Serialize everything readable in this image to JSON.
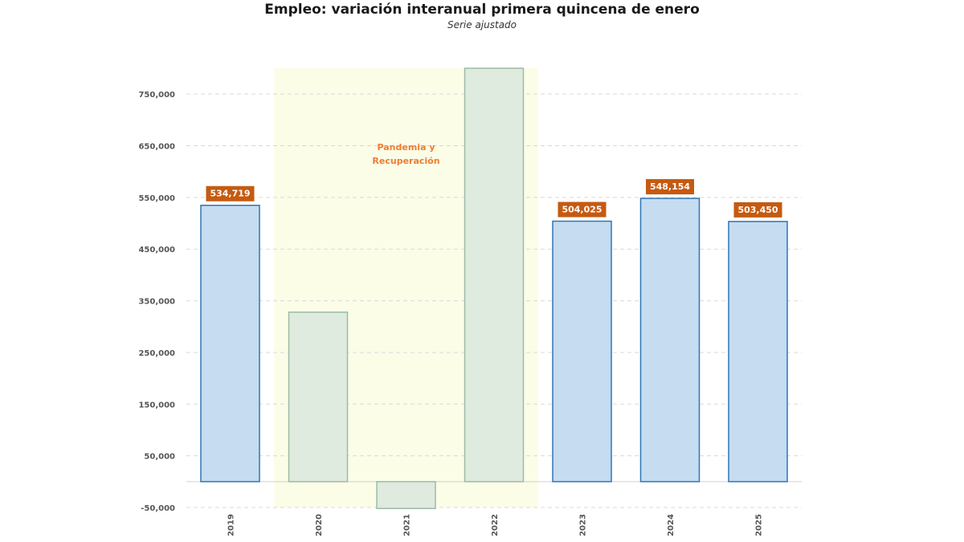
{
  "chart_data": {
    "type": "bar",
    "title": "Empleo: variación interanual primera quincena de enero",
    "subtitle": "Serie ajustado",
    "xlabel": "",
    "ylabel": "",
    "categories": [
      "2019",
      "2020",
      "2021",
      "2022",
      "2023",
      "2024",
      "2025"
    ],
    "values": [
      534719,
      328000,
      -52000,
      800000,
      504025,
      548154,
      503450
    ],
    "data_labels": [
      "534,719",
      null,
      null,
      null,
      "504,025",
      "548,154",
      "503,450"
    ],
    "highlighted": [
      false,
      true,
      true,
      true,
      false,
      false,
      false
    ],
    "ylim": [
      -50000,
      800000
    ],
    "yticks": [
      -50000,
      50000,
      150000,
      250000,
      350000,
      450000,
      550000,
      650000,
      750000
    ],
    "ytick_labels": [
      "-50,000",
      "50,000",
      "150,000",
      "250,000",
      "350,000",
      "450,000",
      "550,000",
      "650,000",
      "750,000"
    ],
    "grid": true,
    "shaded_region": {
      "from": "2020",
      "to": "2022",
      "label_lines": [
        "Pandemia y",
        "Recuperación"
      ]
    },
    "colors": {
      "bar_fill": "#C5DCF1",
      "bar_stroke": "#2E75B6",
      "highlight_fill": "#DFEBDF",
      "highlight_stroke": "#9DBBA6",
      "shade": "#FBFDE7",
      "label_bg": "#C55A11",
      "annotation": "#ED7D31",
      "grid": "#D9D9D9"
    }
  }
}
